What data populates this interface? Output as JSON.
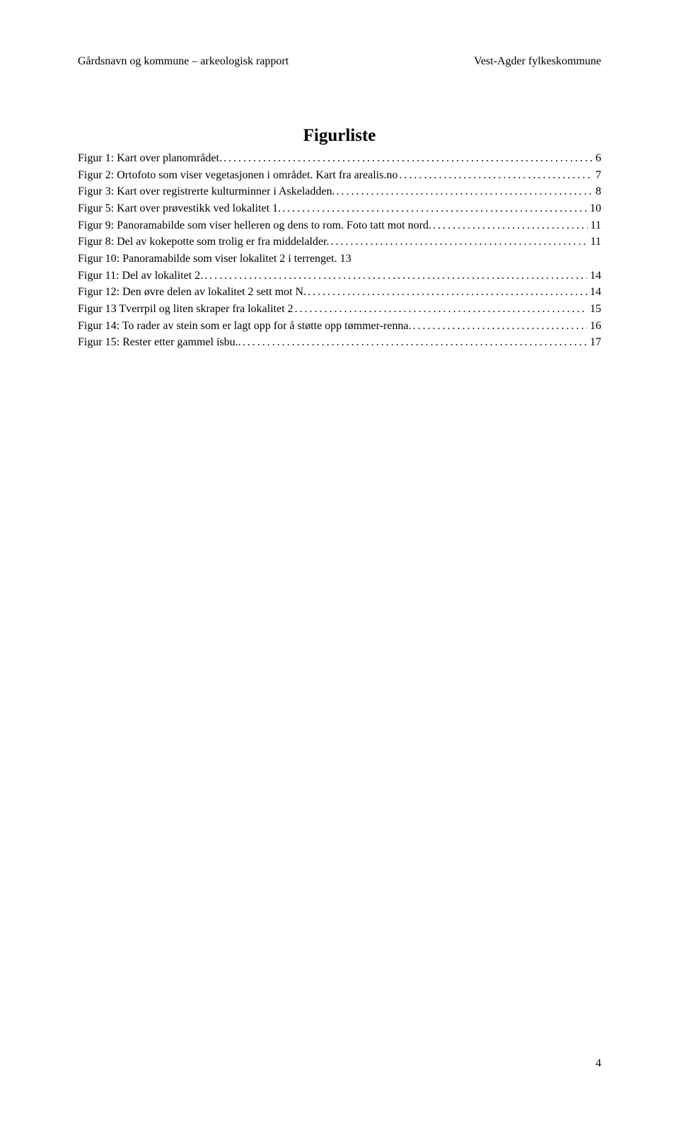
{
  "header": {
    "left": "Gårdsnavn og kommune – arkeologisk rapport",
    "right": "Vest-Agder fylkeskommune"
  },
  "title": "Figurliste",
  "entries": [
    {
      "text": "Figur 1: Kart over planområdet.",
      "page": "6"
    },
    {
      "text": "Figur 2: Ortofoto som viser vegetasjonen i området. Kart fra arealis.no",
      "page": "7"
    },
    {
      "text": "Figur 3: Kart over registrerte kulturminner i Askeladden.",
      "page": "8"
    },
    {
      "text": "Figur 5: Kart over prøvestikk ved lokalitet 1.",
      "page": "10"
    },
    {
      "text": "Figur 9: Panoramabilde som viser helleren og dens to rom. Foto tatt mot nord.",
      "page": "11"
    },
    {
      "text": "Figur 8: Del av kokepotte som trolig er fra middelalder.",
      "page": "11"
    },
    {
      "text": "Figur 10: Panoramabilde som viser lokalitet 2 i terrenget. 13",
      "page": ""
    },
    {
      "text": "Figur 11: Del av lokalitet 2. ",
      "page": "14"
    },
    {
      "text": "Figur 12: Den øvre delen av lokalitet 2 sett mot N. ",
      "page": "14"
    },
    {
      "text": "Figur 13 Tverrpil og liten skraper fra lokalitet 2",
      "page": "15"
    },
    {
      "text": "Figur 14: To rader av stein som er lagt opp for å støtte opp tømmer-renna.",
      "page": "16"
    },
    {
      "text": "Figur 15: Rester etter gammel isbu..",
      "page": "17"
    }
  ],
  "pageNumber": "4"
}
